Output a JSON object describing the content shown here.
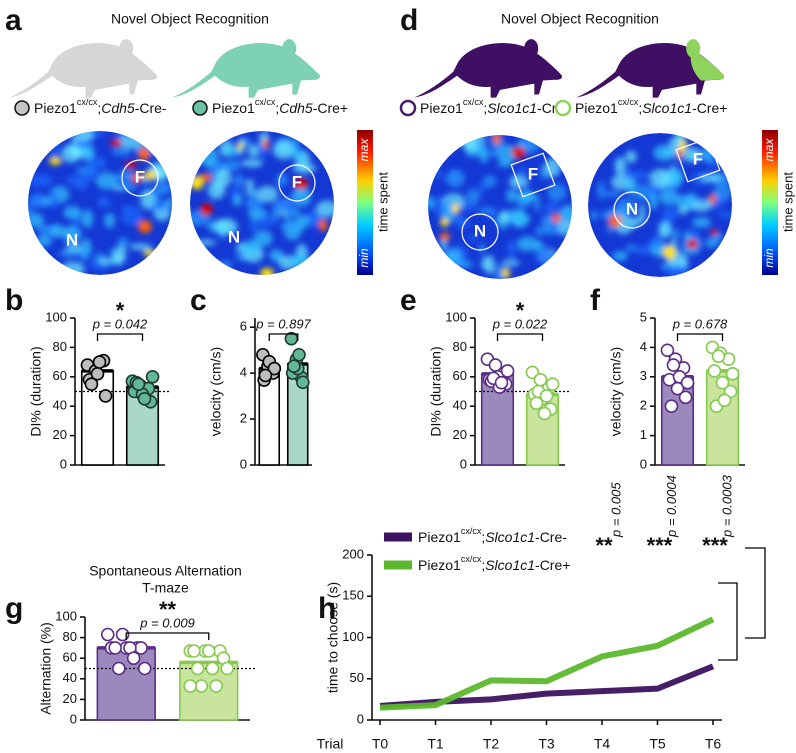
{
  "nor_panels": [
    {
      "letter": "a",
      "title": "Novel Object Recognition",
      "mouse_colors": [
        "#d6d6d6",
        "#7fd1b3"
      ],
      "legend": [
        {
          "name": {
            "base": "Piezo1",
            "sup": "cx/cx",
            "sep": ";",
            "gene": "Cdh5",
            "suffix": "-Cre-"
          },
          "color": "#c4c4c4",
          "marker": "filled"
        },
        {
          "name": {
            "base": "Piezo1",
            "sup": "cx/cx",
            "sep": ";",
            "gene": "Cdh5",
            "suffix": "-Cre+"
          },
          "color": "#6cc3a3",
          "marker": "filled"
        }
      ],
      "objects": [
        "F",
        "N"
      ],
      "colorbar": {
        "max": "max",
        "min": "min",
        "label": "time spent"
      }
    },
    {
      "letter": "d",
      "title": "Novel Object Recognition",
      "mouse_colors": [
        "#3f0f63",
        "#3f0f63"
      ],
      "highlight": "#8ed35b",
      "legend": [
        {
          "name": {
            "base": "Piezo1",
            "sup": "cx/cx",
            "sep": ";",
            "gene": "Slco1c1",
            "suffix": "-Cre-"
          },
          "color": "#4a1a6e",
          "marker": "open"
        },
        {
          "name": {
            "base": "Piezo1",
            "sup": "cx/cx",
            "sep": ";",
            "gene": "Slco1c1",
            "suffix": "-Cre+"
          },
          "color": "#8fd25a",
          "marker": "open"
        }
      ],
      "objects": [
        "F",
        "N"
      ],
      "colorbar": {
        "max": "max",
        "min": "min",
        "label": "time spent"
      }
    }
  ],
  "chart_data": [
    {
      "letter": "b",
      "type": "bar",
      "ylabel": "DI% (duration)",
      "ylim": [
        0,
        100
      ],
      "yticks": [
        0,
        20,
        40,
        60,
        80,
        100
      ],
      "values": [
        64,
        53
      ],
      "colors": [
        "#ffffff",
        "#a9d9c6"
      ],
      "edgecolors": [
        "#000000",
        "#000000"
      ],
      "points": [
        [
          68,
          64,
          71,
          58,
          62,
          47,
          55,
          70
        ],
        [
          57,
          54,
          52,
          50,
          48,
          43,
          56,
          45,
          60,
          55
        ]
      ],
      "point_fill": [
        "#bdbdbd",
        "#62b797"
      ],
      "point_stroke": [
        "#000000",
        "#1f3b30"
      ],
      "refline": 50,
      "p_text": "p = 0.042",
      "stars": "*"
    },
    {
      "letter": "c",
      "type": "bar",
      "ylabel": "velocity (cm/s)",
      "ylim": [
        0,
        6.4
      ],
      "yticks": [
        0,
        2,
        4,
        6
      ],
      "values": [
        4.2,
        4.4
      ],
      "colors": [
        "#ffffff",
        "#a9d9c6"
      ],
      "edgecolors": [
        "#000000",
        "#000000"
      ],
      "points": [
        [
          4.8,
          4.3,
          4.0,
          3.7,
          4.5,
          4.2,
          3.9
        ],
        [
          5.5,
          4.6,
          3.8,
          4.0,
          4.2,
          3.6,
          4.3,
          4.8
        ]
      ],
      "point_fill": [
        "#bdbdbd",
        "#62b797"
      ],
      "point_stroke": [
        "#000000",
        "#1f3b30"
      ],
      "p_text": "p = 0.897"
    },
    {
      "letter": "e",
      "type": "bar",
      "ylabel": "DI% (duration)",
      "ylim": [
        0,
        100
      ],
      "yticks": [
        0,
        20,
        40,
        60,
        80,
        100
      ],
      "values": [
        62,
        48
      ],
      "colors": [
        "#9b88bd",
        "#c9e49c"
      ],
      "edgecolors": [
        "#5b2d86",
        "#86c94f"
      ],
      "points": [
        [
          72,
          68,
          62,
          58,
          60,
          55,
          57,
          53,
          64,
          59,
          56
        ],
        [
          63,
          58,
          52,
          48,
          45,
          38,
          42,
          35,
          55,
          50,
          47
        ]
      ],
      "point_fill": [
        "#ffffff",
        "#ffffff"
      ],
      "point_stroke": [
        "#5b2d86",
        "#86c94f"
      ],
      "refline": 50,
      "p_text": "p = 0.022",
      "stars": "*"
    },
    {
      "letter": "f",
      "type": "bar",
      "ylabel": "velocity (cm/s)",
      "ylim": [
        0,
        5
      ],
      "yticks": [
        0,
        1,
        2,
        3,
        4,
        5
      ],
      "values": [
        3.0,
        3.2
      ],
      "colors": [
        "#9b88bd",
        "#c9e49c"
      ],
      "edgecolors": [
        "#5b2d86",
        "#86c94f"
      ],
      "points": [
        [
          3.9,
          3.6,
          3.3,
          2.9,
          2.6,
          2.3,
          2.0,
          3.0,
          2.8,
          3.4
        ],
        [
          4.0,
          3.8,
          3.6,
          3.2,
          2.8,
          2.5,
          2.0,
          2.2,
          3.1,
          3.7
        ]
      ],
      "point_fill": [
        "#ffffff",
        "#ffffff"
      ],
      "point_stroke": [
        "#5b2d86",
        "#86c94f"
      ],
      "p_text": "p = 0.678"
    },
    {
      "letter": "g",
      "type": "bar",
      "title": [
        "Spontaneous Alternation",
        "T-maze"
      ],
      "ylabel": "Alternation (%)",
      "ylim": [
        0,
        100
      ],
      "yticks": [
        0,
        20,
        40,
        60,
        80,
        100
      ],
      "values": [
        70,
        56
      ],
      "colors": [
        "#9b88bd",
        "#c9e49c"
      ],
      "edgecolors": [
        "#5b2d86",
        "#86c94f"
      ],
      "points": [
        [
          83,
          83,
          70,
          70,
          70,
          70,
          70,
          70,
          50,
          50,
          60
        ],
        [
          67,
          67,
          67,
          67,
          67,
          60,
          50,
          50,
          50,
          33,
          33,
          33
        ]
      ],
      "point_fill": [
        "#ffffff",
        "#ffffff"
      ],
      "point_stroke": [
        "#5b2d86",
        "#86c94f"
      ],
      "refline": 50,
      "p_text": "p = 0.009",
      "stars": "**"
    },
    {
      "letter": "h",
      "type": "line",
      "xlabel": "Trial",
      "ylabel": "time to choose (s)",
      "categories": [
        "T0",
        "T1",
        "T2",
        "T3",
        "T4",
        "T5",
        "T6"
      ],
      "ylim": [
        0,
        200
      ],
      "yticks": [
        0,
        50,
        100,
        150,
        200
      ],
      "series": [
        {
          "name": {
            "base": "Piezo1",
            "sup": "cx/cx",
            "sep": ";",
            "gene": "Slco1c1",
            "suffix": "-Cre-"
          },
          "color": "#3d1260",
          "values": [
            17,
            22,
            25,
            32,
            35,
            38,
            65
          ]
        },
        {
          "name": {
            "base": "Piezo1",
            "sup": "cx/cx",
            "sep": ";",
            "gene": "Slco1c1",
            "suffix": "-Cre+"
          },
          "color": "#5cb82e",
          "values": [
            15,
            18,
            48,
            47,
            77,
            90,
            122
          ]
        }
      ],
      "annotations": [
        {
          "x": "T4",
          "stars": "**",
          "p_text": "p = 0.005"
        },
        {
          "x": "T5",
          "stars": "***",
          "p_text": "p = 0.0004"
        },
        {
          "x": "T6",
          "stars": "***",
          "p_text": "p = 0.0003"
        }
      ]
    }
  ]
}
